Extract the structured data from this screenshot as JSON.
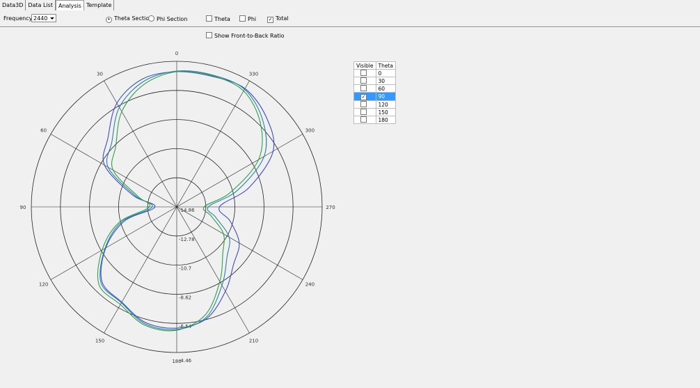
{
  "tabs": [
    "Data3D",
    "Data List",
    "Analysis",
    "Template"
  ],
  "active_tab": 2,
  "toolbar": {
    "frequency_label": "Frequency:",
    "frequency_value": "2440",
    "theta_section": {
      "label": "Theta Section",
      "checked": true
    },
    "phi_section": {
      "label": "Phi Section",
      "checked": false
    },
    "theta": {
      "label": "Theta",
      "checked": false
    },
    "phi": {
      "label": "Phi",
      "checked": false
    },
    "total": {
      "label": "Total",
      "checked": true
    },
    "front_to_back": {
      "label": "Show Front-to-Back Ratio",
      "checked": false
    }
  },
  "chart_data": {
    "type": "polar",
    "angle_ticks": [
      0,
      30,
      60,
      90,
      120,
      150,
      180,
      210,
      240,
      270,
      300,
      330
    ],
    "rlim": [
      -14.86,
      -4.46
    ],
    "rticks": [
      -14.86,
      -12.78,
      -10.7,
      -8.62,
      -6.54,
      -4.46
    ],
    "theta": [
      0,
      15,
      30,
      45,
      60,
      75,
      90,
      105,
      120,
      135,
      150,
      165,
      180,
      195,
      210,
      225,
      240,
      255,
      270,
      285,
      300,
      315,
      330,
      345
    ],
    "series": [
      {
        "color": "#3a4fc4",
        "values": [
          -5.2,
          -5.4,
          -6.3,
          -7.9,
          -8.9,
          -11.6,
          -13.3,
          -11.0,
          -9.0,
          -7.3,
          -7.0,
          -6.3,
          -6.2,
          -6.6,
          -7.9,
          -9.1,
          -9.7,
          -10.9,
          -11.8,
          -9.5,
          -6.9,
          -5.8,
          -5.1,
          -5.2
        ]
      },
      {
        "color": "#2a80a8",
        "values": [
          -5.16,
          -5.6,
          -6.65,
          -8.3,
          -9.19,
          -11.8,
          -13.1,
          -10.8,
          -8.94,
          -7.2,
          -6.95,
          -6.2,
          -6.1,
          -6.7,
          -8.39,
          -9.78,
          -10.53,
          -11.97,
          -12.6,
          -10.4,
          -7.65,
          -6.15,
          -5.16,
          -5.1
        ]
      },
      {
        "color": "#2ea044",
        "values": [
          -5.2,
          -5.8,
          -7.0,
          -8.7,
          -9.6,
          -12.0,
          -12.9,
          -10.6,
          -8.7,
          -7.0,
          -6.8,
          -6.1,
          -6.05,
          -6.9,
          -8.7,
          -10.2,
          -11.0,
          -12.3,
          -12.9,
          -10.9,
          -8.1,
          -6.4,
          -5.3,
          -5.15
        ]
      }
    ]
  },
  "table": {
    "columns": [
      "Visible",
      "Theta"
    ],
    "selected_row": 3,
    "rows": [
      {
        "visible": false,
        "theta": 0
      },
      {
        "visible": false,
        "theta": 30
      },
      {
        "visible": false,
        "theta": 60
      },
      {
        "visible": true,
        "theta": 90
      },
      {
        "visible": false,
        "theta": 120
      },
      {
        "visible": false,
        "theta": 150
      },
      {
        "visible": false,
        "theta": 180
      }
    ]
  }
}
